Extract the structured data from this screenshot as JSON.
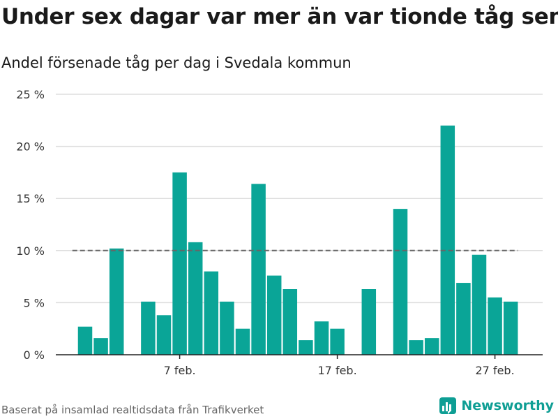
{
  "title": "Under sex dagar var mer än var tionde tåg sent",
  "subtitle": "Andel försenade tåg per dag i Svedala kommun",
  "source": "Baserat på insamlad realtidsdata från Trafikverket",
  "brand": {
    "name": "Newsworthy",
    "icon": "newsworthy-logo-icon",
    "color": "#0e9e94"
  },
  "chart_data": {
    "type": "bar",
    "x": [
      "1 feb.",
      "2 feb.",
      "3 feb.",
      "4 feb.",
      "5 feb.",
      "6 feb.",
      "7 feb.",
      "8 feb.",
      "9 feb.",
      "10 feb.",
      "11 feb.",
      "12 feb.",
      "13 feb.",
      "14 feb.",
      "15 feb.",
      "16 feb.",
      "17 feb.",
      "18 feb.",
      "19 feb.",
      "20 feb.",
      "21 feb.",
      "22 feb.",
      "23 feb.",
      "24 feb.",
      "25 feb.",
      "26 feb.",
      "27 feb.",
      "28 feb."
    ],
    "values": [
      2.7,
      1.6,
      10.2,
      null,
      5.1,
      3.8,
      17.5,
      10.8,
      8.0,
      5.1,
      2.5,
      16.4,
      7.6,
      6.3,
      1.4,
      3.2,
      2.5,
      null,
      6.3,
      null,
      14.0,
      1.4,
      1.6,
      22.0,
      6.9,
      9.6,
      5.5,
      5.1
    ],
    "x_ticks": [
      "7 feb.",
      "17 feb.",
      "27 feb."
    ],
    "y_ticks": [
      "0 %",
      "5 %",
      "10 %",
      "15 %",
      "20 %",
      "25 %"
    ],
    "ylim": [
      0,
      25
    ],
    "reference_line": {
      "value": 10,
      "style": "dashed"
    },
    "bar_color": "#0aa597",
    "grid": true
  }
}
